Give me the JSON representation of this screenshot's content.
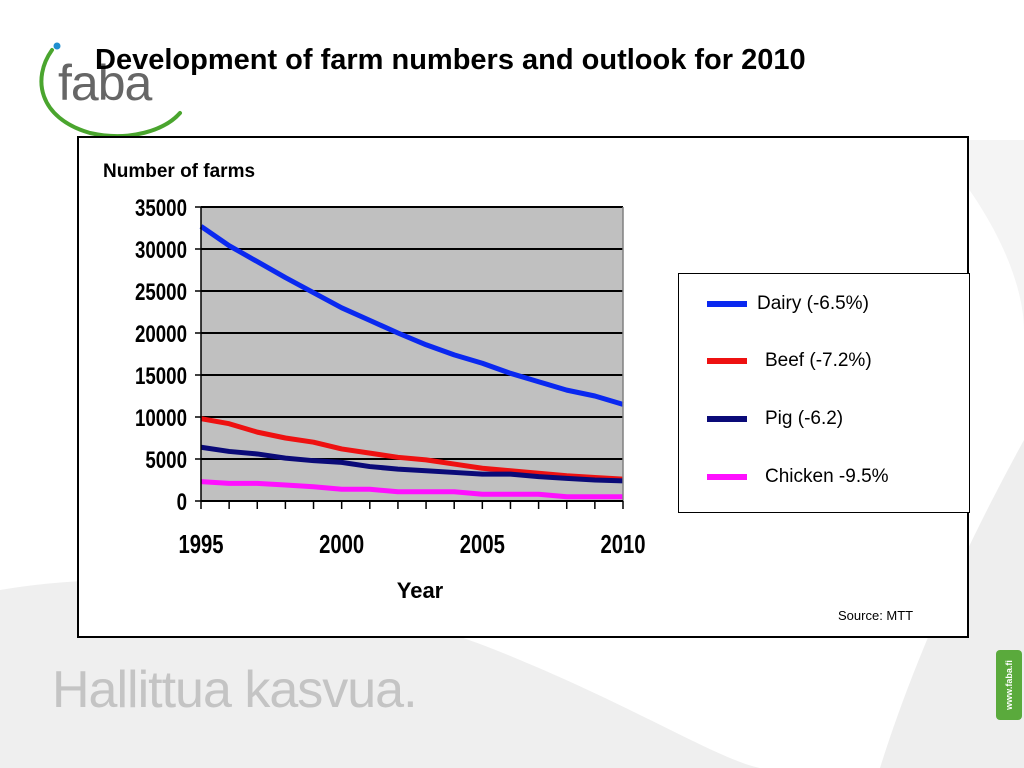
{
  "slide": {
    "title": "Development of farm numbers and outlook for 2010",
    "logo_text": "faba",
    "tagline": "Hallittua kasvua.",
    "url": "www.faba.fi",
    "source": "Source: MTT"
  },
  "colors": {
    "plot_background": "#c0c0c0",
    "logo_green": "#4aa52e",
    "logo_blue": "#1f8fd0",
    "badge_green": "#5aaa3c"
  },
  "chart_data": {
    "type": "line",
    "title": "",
    "ylabel": "Number of farms",
    "xlabel": "Year",
    "xlim": [
      1995,
      2010
    ],
    "ylim": [
      0,
      35000
    ],
    "x_ticks": [
      1995,
      2000,
      2005,
      2010
    ],
    "y_ticks": [
      0,
      5000,
      10000,
      15000,
      20000,
      25000,
      30000,
      35000
    ],
    "grid": "horizontal",
    "legend_position": "right",
    "x": [
      1995,
      1996,
      1997,
      1998,
      1999,
      2000,
      2001,
      2002,
      2003,
      2004,
      2005,
      2006,
      2007,
      2008,
      2009,
      2010
    ],
    "series": [
      {
        "name": "Dairy (-6.5%)",
        "color": "#0a28f0",
        "values": [
          32700,
          30400,
          28500,
          26600,
          24800,
          23000,
          21500,
          20000,
          18600,
          17400,
          16400,
          15200,
          14200,
          13200,
          12500,
          11500
        ]
      },
      {
        "name": "Beef (-7.2%)",
        "color": "#ee1111",
        "values": [
          9800,
          9200,
          8200,
          7500,
          7000,
          6200,
          5700,
          5200,
          4900,
          4400,
          3900,
          3600,
          3300,
          3000,
          2800,
          2600
        ]
      },
      {
        "name": "Pig (-6.2)",
        "color": "#0a0a78",
        "values": [
          6400,
          5900,
          5600,
          5100,
          4800,
          4600,
          4100,
          3800,
          3600,
          3400,
          3200,
          3200,
          2900,
          2700,
          2500,
          2400
        ]
      },
      {
        "name": "Chicken -9.5%",
        "color": "#ff10ff",
        "values": [
          2300,
          2100,
          2100,
          1900,
          1700,
          1400,
          1400,
          1100,
          1100,
          1100,
          800,
          800,
          800,
          500,
          500,
          500
        ]
      }
    ]
  }
}
